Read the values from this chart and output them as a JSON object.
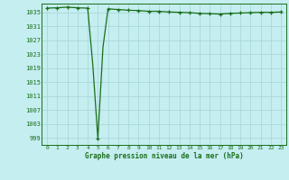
{
  "title": "Graphe pression niveau de la mer (hPa)",
  "background_color": "#c5eef0",
  "grid_color": "#aad8da",
  "line_color": "#1a6e1a",
  "marker_color": "#1a6e1a",
  "xlim": [
    -0.5,
    23.5
  ],
  "ylim": [
    997,
    1037.5
  ],
  "yticks": [
    999,
    1003,
    1007,
    1011,
    1015,
    1019,
    1023,
    1027,
    1031,
    1035
  ],
  "xticks": [
    0,
    1,
    2,
    3,
    4,
    5,
    6,
    7,
    8,
    9,
    10,
    11,
    12,
    13,
    14,
    15,
    16,
    17,
    18,
    19,
    20,
    21,
    22,
    23
  ],
  "x": [
    0,
    1,
    2,
    3,
    4,
    4.5,
    5,
    5.5,
    6,
    7,
    8,
    9,
    10,
    11,
    12,
    13,
    14,
    15,
    16,
    17,
    18,
    19,
    20,
    21,
    22,
    23
  ],
  "y": [
    1036.2,
    1036.3,
    1036.5,
    1036.3,
    1036.2,
    1020.0,
    998.8,
    1025.0,
    1036.0,
    1035.8,
    1035.6,
    1035.5,
    1035.3,
    1035.3,
    1035.1,
    1035.0,
    1034.9,
    1034.7,
    1034.6,
    1034.5,
    1034.7,
    1034.8,
    1034.9,
    1035.0,
    1035.0,
    1035.1
  ],
  "marker_x": [
    0,
    1,
    2,
    3,
    4,
    5,
    6,
    7,
    8,
    9,
    10,
    11,
    12,
    13,
    14,
    15,
    16,
    17,
    18,
    19,
    20,
    21,
    22,
    23
  ],
  "marker_y": [
    1036.2,
    1036.3,
    1036.5,
    1036.3,
    1036.2,
    998.8,
    1036.0,
    1035.8,
    1035.6,
    1035.5,
    1035.3,
    1035.3,
    1035.1,
    1035.0,
    1034.9,
    1034.7,
    1034.6,
    1034.5,
    1034.7,
    1034.8,
    1034.9,
    1035.0,
    1035.0,
    1035.1
  ]
}
